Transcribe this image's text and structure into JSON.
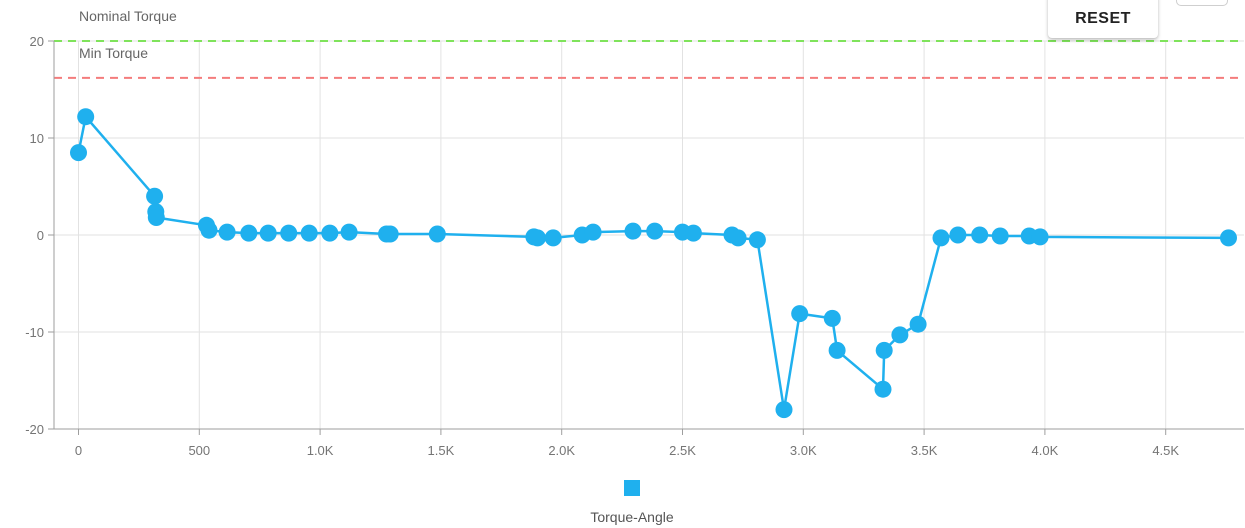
{
  "toolbar": {
    "reset_label": "RESET"
  },
  "colors": {
    "series": "#1fb0ee",
    "nominal_line": "#7fe35b",
    "min_line": "#f47c7c",
    "grid": "#e2e2e2",
    "axis": "#9e9e9e"
  },
  "chart_data": {
    "type": "line",
    "xlim": [
      -40,
      4800
    ],
    "ylim": [
      -20,
      20
    ],
    "xticks": [
      0,
      500,
      1000,
      1500,
      2000,
      2500,
      3000,
      3500,
      4000,
      4500
    ],
    "xtick_labels": [
      "0",
      "500",
      "1.0K",
      "1.5K",
      "2.0K",
      "2.5K",
      "3.0K",
      "3.5K",
      "4.0K",
      "4.5K"
    ],
    "yticks": [
      20,
      10,
      0,
      -10,
      -20
    ],
    "ytick_labels": [
      "20",
      "10",
      "0",
      "-10",
      "-20"
    ],
    "grid": true,
    "legend_position": "bottom",
    "reference_lines": [
      {
        "label": "Nominal Torque",
        "y": 20,
        "style": "dashed",
        "color": "#7fe35b"
      },
      {
        "label": "Min Torque",
        "y": 16.2,
        "style": "dashed",
        "color": "#f47c7c"
      }
    ],
    "series": [
      {
        "name": "Torque-Angle",
        "color": "#1fb0ee",
        "points": [
          [
            0,
            8.5
          ],
          [
            30,
            12.2
          ],
          [
            315,
            4.0
          ],
          [
            320,
            2.4
          ],
          [
            322,
            1.8
          ],
          [
            530,
            1.0
          ],
          [
            540,
            0.5
          ],
          [
            615,
            0.3
          ],
          [
            705,
            0.2
          ],
          [
            785,
            0.2
          ],
          [
            870,
            0.2
          ],
          [
            955,
            0.2
          ],
          [
            1040,
            0.2
          ],
          [
            1120,
            0.3
          ],
          [
            1275,
            0.1
          ],
          [
            1290,
            0.1
          ],
          [
            1485,
            0.1
          ],
          [
            1885,
            -0.2
          ],
          [
            1900,
            -0.3
          ],
          [
            1965,
            -0.3
          ],
          [
            2085,
            0.0
          ],
          [
            2130,
            0.3
          ],
          [
            2295,
            0.4
          ],
          [
            2385,
            0.4
          ],
          [
            2500,
            0.3
          ],
          [
            2545,
            0.2
          ],
          [
            2705,
            0.0
          ],
          [
            2730,
            -0.3
          ],
          [
            2810,
            -0.5
          ],
          [
            2920,
            -18.0
          ],
          [
            2985,
            -8.1
          ],
          [
            3120,
            -8.6
          ],
          [
            3140,
            -11.9
          ],
          [
            3330,
            -15.9
          ],
          [
            3335,
            -11.9
          ],
          [
            3400,
            -10.3
          ],
          [
            3475,
            -9.2
          ],
          [
            3570,
            -0.3
          ],
          [
            3640,
            0.0
          ],
          [
            3730,
            0.0
          ],
          [
            3815,
            -0.1
          ],
          [
            3935,
            -0.1
          ],
          [
            3980,
            -0.2
          ],
          [
            4760,
            -0.3
          ]
        ]
      }
    ]
  }
}
